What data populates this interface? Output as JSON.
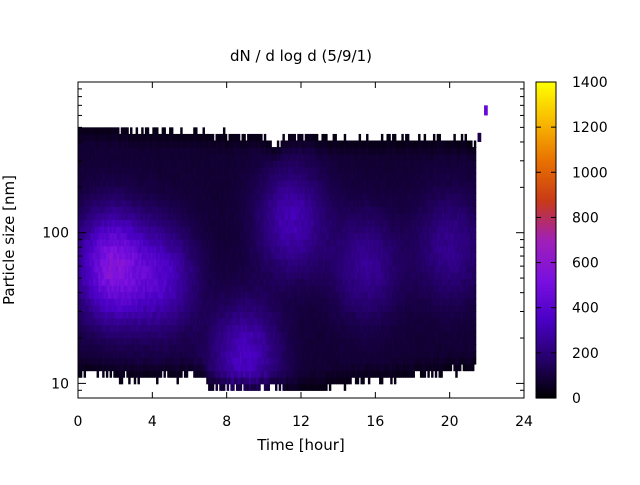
{
  "chart_data": {
    "type": "heatmap",
    "title": "dN / d log d (5/9/1)",
    "xlabel": "Time [hour]",
    "ylabel": "Particle size [nm]",
    "x_ticks": [
      "0",
      "4",
      "8",
      "12",
      "16",
      "20",
      "24"
    ],
    "x_tick_values": [
      0,
      4,
      8,
      12,
      16,
      20,
      24
    ],
    "xlim": [
      0,
      24
    ],
    "y_scale": "log",
    "ylim": [
      8,
      1000
    ],
    "y_ticks": [
      "10",
      "100"
    ],
    "y_tick_values": [
      10,
      100
    ],
    "colorbar": {
      "ticks": [
        "0",
        "200",
        "400",
        "600",
        "800",
        "1000",
        "1200",
        "1400"
      ],
      "tick_values": [
        0,
        200,
        400,
        600,
        800,
        1000,
        1200,
        1400
      ],
      "range": [
        0,
        1400
      ],
      "palette": [
        "#000000",
        "#25006a",
        "#4b00c5",
        "#7a10e0",
        "#a020b8",
        "#c83a18",
        "#e87000",
        "#f8b800",
        "#ffff00"
      ]
    },
    "grid": false,
    "data": {
      "time_range_hours": [
        0,
        21.4
      ],
      "time_step_hours": 0.1,
      "size_range_nm": [
        9,
        500
      ],
      "typical_value": 150,
      "max_value_approx": 450,
      "upper_size_edge": [
        [
          0,
          520
        ],
        [
          2,
          500
        ],
        [
          4,
          470
        ],
        [
          7,
          460
        ],
        [
          8,
          450
        ],
        [
          10,
          440
        ],
        [
          10.6,
          360
        ],
        [
          11,
          420
        ],
        [
          12,
          450
        ],
        [
          14,
          430
        ],
        [
          16,
          420
        ],
        [
          18,
          420
        ],
        [
          21.4,
          410
        ]
      ],
      "lower_size_edge": [
        [
          0,
          12
        ],
        [
          2,
          11
        ],
        [
          4,
          11
        ],
        [
          6.8,
          11
        ],
        [
          7,
          9
        ],
        [
          8,
          9
        ],
        [
          10,
          9
        ],
        [
          12,
          9
        ],
        [
          14,
          10
        ],
        [
          16,
          10.5
        ],
        [
          18,
          11
        ],
        [
          20,
          12
        ],
        [
          21.4,
          12.5
        ]
      ],
      "hotspots": [
        {
          "time": 1.8,
          "size": 60,
          "value": 450
        },
        {
          "time": 4.5,
          "size": 50,
          "value": 260
        },
        {
          "time": 9.0,
          "size": 15,
          "value": 260
        },
        {
          "time": 11.5,
          "size": 120,
          "value": 230
        },
        {
          "time": 15.5,
          "size": 60,
          "value": 170
        },
        {
          "time": 20.0,
          "size": 80,
          "value": 160
        }
      ],
      "isolated_cells": [
        {
          "time": 21.6,
          "size_range": [
            400,
            460
          ],
          "value": 120
        },
        {
          "time": 21.95,
          "size_range": [
            600,
            700
          ],
          "value": 450
        }
      ]
    }
  }
}
